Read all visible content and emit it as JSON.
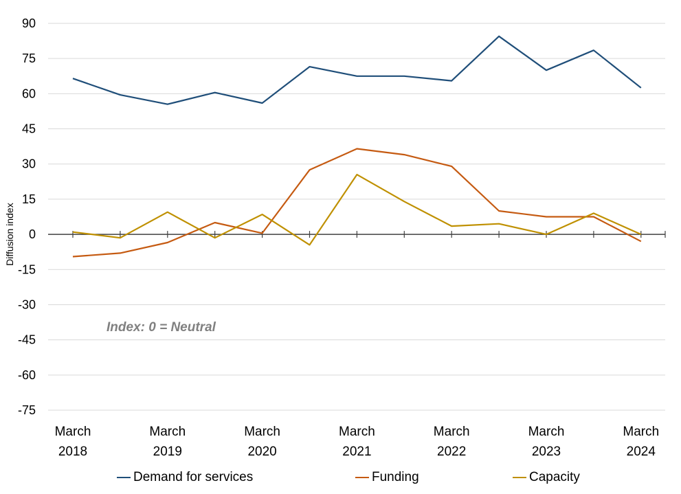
{
  "chart_data": {
    "type": "line",
    "ylabel": "Diffusion index",
    "xlabel": "",
    "ylim": [
      -75,
      90
    ],
    "yticks": [
      90,
      75,
      60,
      45,
      30,
      15,
      0,
      -15,
      -30,
      -45,
      -60,
      -75
    ],
    "grid": true,
    "legend_position": "bottom",
    "annotation": "Index: 0 = Neutral",
    "x_tick_labels": [
      {
        "index": 0,
        "line1": "March",
        "line2": "2018"
      },
      {
        "index": 2,
        "line1": "March",
        "line2": "2019"
      },
      {
        "index": 4,
        "line1": "March",
        "line2": "2020"
      },
      {
        "index": 6,
        "line1": "March",
        "line2": "2021"
      },
      {
        "index": 8,
        "line1": "March",
        "line2": "2022"
      },
      {
        "index": 10,
        "line1": "March",
        "line2": "2023"
      },
      {
        "index": 12,
        "line1": "March",
        "line2": "2024"
      }
    ],
    "series": [
      {
        "name": "Demand for services",
        "color": "#1f4e79",
        "values": [
          66.5,
          59.5,
          55.5,
          60.5,
          56,
          71.5,
          67.5,
          67.5,
          65.5,
          84.5,
          70,
          78.5,
          62.5
        ]
      },
      {
        "name": "Funding",
        "color": "#c55a11",
        "values": [
          -9.5,
          -8,
          -3.5,
          5,
          0.5,
          27.5,
          36.5,
          34,
          29,
          10,
          7.5,
          7.5,
          -3
        ]
      },
      {
        "name": "Capacity",
        "color": "#bf9000",
        "values": [
          1,
          -1.5,
          9.5,
          -1.5,
          8.5,
          -4.5,
          25.5,
          14,
          3.5,
          4.5,
          0,
          9,
          0
        ]
      }
    ]
  }
}
